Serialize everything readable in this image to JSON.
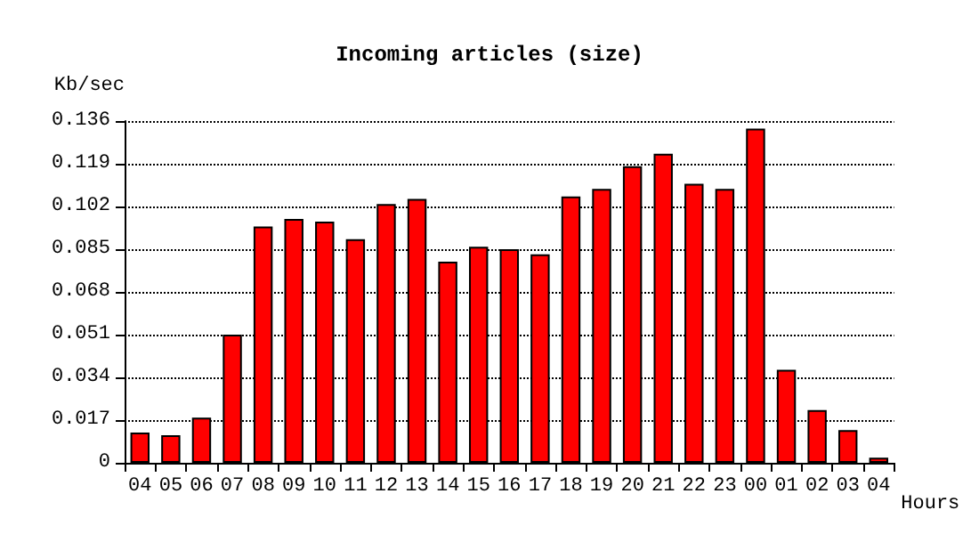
{
  "chart_data": {
    "type": "bar",
    "title": "Incoming articles (size)",
    "ylabel": "Kb/sec",
    "xlabel": "Hours",
    "categories": [
      "04",
      "05",
      "06",
      "07",
      "08",
      "09",
      "10",
      "11",
      "12",
      "13",
      "14",
      "15",
      "16",
      "17",
      "18",
      "19",
      "20",
      "21",
      "22",
      "23",
      "00",
      "01",
      "02",
      "03",
      "04"
    ],
    "values": [
      0.012,
      0.011,
      0.018,
      0.051,
      0.094,
      0.097,
      0.096,
      0.089,
      0.103,
      0.105,
      0.08,
      0.086,
      0.085,
      0.083,
      0.106,
      0.109,
      0.118,
      0.123,
      0.111,
      0.109,
      0.133,
      0.037,
      0.021,
      0.013,
      0.002
    ],
    "color": "#ff0000",
    "ylim": [
      0,
      0.136
    ],
    "yticks": [
      0,
      0.017,
      0.034,
      0.051,
      0.068,
      0.085,
      0.102,
      0.119,
      0.136
    ],
    "grid": "y"
  }
}
